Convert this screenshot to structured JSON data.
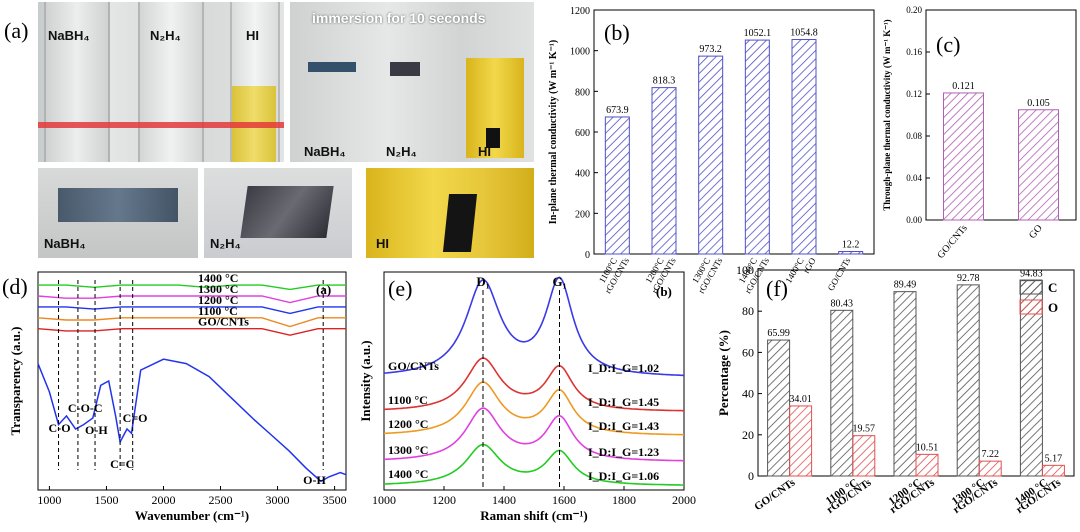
{
  "panel_a": {
    "label": "(a)",
    "top_left": {
      "tubes": [
        "NaBH₄",
        "N₂H₄",
        "HI"
      ]
    },
    "top_right": {
      "title": "immersion for 10 seconds",
      "tubes": [
        "NaBH₄",
        "N₂H₄",
        "HI"
      ]
    },
    "bottom": {
      "captions": [
        "NaBH₄",
        "N₂H₄",
        "HI"
      ]
    },
    "colors": {
      "hi_liquid": "#e8cf3a",
      "glass": "#d9dcdc"
    }
  },
  "chart_data": [
    {
      "id": "b",
      "type": "bar",
      "panel_label": "(b)",
      "ylabel": "In-plane thermal conductivity (W m⁻¹ K⁻¹)",
      "ylim": [
        0,
        1200
      ],
      "yticks": [
        0,
        200,
        400,
        600,
        800,
        1000,
        1200
      ],
      "categories": [
        [
          "1100°C",
          "rGO/CNTs"
        ],
        [
          "1200°C",
          "rGO/CNTs"
        ],
        [
          "1300°C",
          "rGO/CNTs"
        ],
        [
          "1400°C",
          "rGO/CNTs"
        ],
        [
          "1400°C",
          "rGO"
        ],
        [
          "GO/CNTs"
        ]
      ],
      "values": [
        673.9,
        818.3,
        973.2,
        1052.1,
        1054.8,
        12.2
      ],
      "value_labels": [
        "673.9",
        "818.3",
        "973.2",
        "1052.1",
        "1054.8",
        "12.2"
      ],
      "color": "#5050c8"
    },
    {
      "id": "c",
      "type": "bar",
      "panel_label": "(c)",
      "ylabel": "Through-plane thermal conductivity (W m⁻¹ K⁻¹)",
      "ylim": [
        0,
        0.2
      ],
      "yticks": [
        0.0,
        0.04,
        0.08,
        0.12,
        0.16,
        0.2
      ],
      "ytick_labels": [
        "0.00",
        "0.04",
        "0.08",
        "0.12",
        "0.16",
        "0.20"
      ],
      "categories": [
        "GO/CNTs",
        "GO"
      ],
      "values": [
        0.121,
        0.105
      ],
      "value_labels": [
        "0.121",
        "0.105"
      ],
      "color": "#b060b0"
    },
    {
      "id": "d",
      "type": "line",
      "panel_label": "(d)",
      "corner_label": "(a)",
      "xlabel": "Wavenumber (cm⁻¹)",
      "ylabel": "Transparency (a.u.)",
      "xlim": [
        900,
        3600
      ],
      "xticks": [
        1000,
        1500,
        2000,
        2500,
        3000,
        3500
      ],
      "series": [
        {
          "name": "1400 °C",
          "color": "#22cc22",
          "values": [
            0.94,
            0.94,
            0.93,
            0.94,
            0.94,
            0.94,
            0.93,
            0.94,
            0.94,
            0.92,
            0.94,
            0.94
          ]
        },
        {
          "name": "1300 °C",
          "color": "#e040e0",
          "values": [
            0.89,
            0.88,
            0.88,
            0.89,
            0.89,
            0.89,
            0.89,
            0.89,
            0.89,
            0.86,
            0.89,
            0.89
          ]
        },
        {
          "name": "1200 °C",
          "color": "#2233ee",
          "values": [
            0.84,
            0.84,
            0.83,
            0.84,
            0.84,
            0.84,
            0.84,
            0.84,
            0.84,
            0.81,
            0.84,
            0.84
          ]
        },
        {
          "name": "1100 °C",
          "color": "#ee8822",
          "values": [
            0.79,
            0.78,
            0.78,
            0.79,
            0.79,
            0.79,
            0.79,
            0.79,
            0.79,
            0.75,
            0.79,
            0.79
          ]
        },
        {
          "name": "GO/CNTs",
          "color": "#dd2222",
          "values": [
            0.74,
            0.73,
            0.73,
            0.74,
            0.74,
            0.74,
            0.74,
            0.74,
            0.74,
            0.71,
            0.74,
            0.74
          ]
        }
      ],
      "main_curve": {
        "color": "#2233ee",
        "x": [
          900,
          1000,
          1080,
          1150,
          1230,
          1300,
          1380,
          1450,
          1520,
          1580,
          1620,
          1680,
          1720,
          1800,
          2000,
          2200,
          2400,
          2600,
          2800,
          2950,
          3100,
          3250,
          3380,
          3450,
          3550,
          3600
        ],
        "y": [
          0.58,
          0.45,
          0.3,
          0.34,
          0.28,
          0.3,
          0.33,
          0.48,
          0.5,
          0.34,
          0.22,
          0.28,
          0.26,
          0.55,
          0.6,
          0.58,
          0.52,
          0.42,
          0.32,
          0.25,
          0.18,
          0.1,
          0.04,
          0.06,
          0.08,
          0.07
        ]
      },
      "annotations": [
        {
          "text": "C-O",
          "x": 1080
        },
        {
          "text": "C-O-C",
          "x": 1250
        },
        {
          "text": "O-H",
          "x": 1400
        },
        {
          "text": "C=C",
          "x": 1620
        },
        {
          "text": "C=O",
          "x": 1730
        },
        {
          "text": "O-H",
          "x": 3400
        }
      ]
    },
    {
      "id": "e",
      "type": "line",
      "panel_label": "(e)",
      "corner_label": "(b)",
      "xlabel": "Raman shift (cm⁻¹)",
      "ylabel": "Intensity (a.u.)",
      "xlim": [
        1000,
        2000
      ],
      "xticks": [
        1000,
        1200,
        1400,
        1600,
        1800,
        2000
      ],
      "peaks": [
        "D₁",
        "G₁"
      ],
      "peak_x": [
        1330,
        1585
      ],
      "series": [
        {
          "name": "GO/CNTs",
          "color": "#3a3ae8",
          "ratio": "I_D:I_G=1.02",
          "amp": 1.0
        },
        {
          "name": "1100 °C",
          "color": "#dd3333",
          "ratio": "I_D:I_G=1.45",
          "amp": 0.55
        },
        {
          "name": "1200 °C",
          "color": "#ee9922",
          "ratio": "I_D:I_G=1.43",
          "amp": 0.55
        },
        {
          "name": "1300 °C",
          "color": "#e040e0",
          "ratio": "I_D:I_G=1.23",
          "amp": 0.55
        },
        {
          "name": "1400 °C",
          "color": "#22cc22",
          "ratio": "I_D:I_G=1.06",
          "amp": 0.5
        }
      ]
    },
    {
      "id": "f",
      "type": "bar",
      "panel_label": "(f)",
      "ylabel": "Percentage (%)",
      "ylim": [
        0,
        100
      ],
      "yticks": [
        0,
        20,
        40,
        60,
        80,
        100
      ],
      "categories": [
        [
          "GO/CNTs"
        ],
        [
          "1100 °C",
          "rGO/CNTs"
        ],
        [
          "1200 °C",
          "rGO/CNTs"
        ],
        [
          "1300 °C",
          "rGO/CNTs"
        ],
        [
          "1400 °C",
          "rGO/CNTs"
        ]
      ],
      "series": [
        {
          "name": "C",
          "color": "#555555",
          "values": [
            65.99,
            80.43,
            89.49,
            92.78,
            94.83
          ],
          "value_labels": [
            "65.99",
            "80.43",
            "89.49",
            "92.78",
            "94.83"
          ]
        },
        {
          "name": "O",
          "color": "#e05050",
          "values": [
            34.01,
            19.57,
            10.51,
            7.22,
            5.17
          ],
          "value_labels": [
            "34.01",
            "19.57",
            "10.51",
            "7.22",
            "5.17"
          ]
        }
      ],
      "legend": "top-right"
    }
  ]
}
